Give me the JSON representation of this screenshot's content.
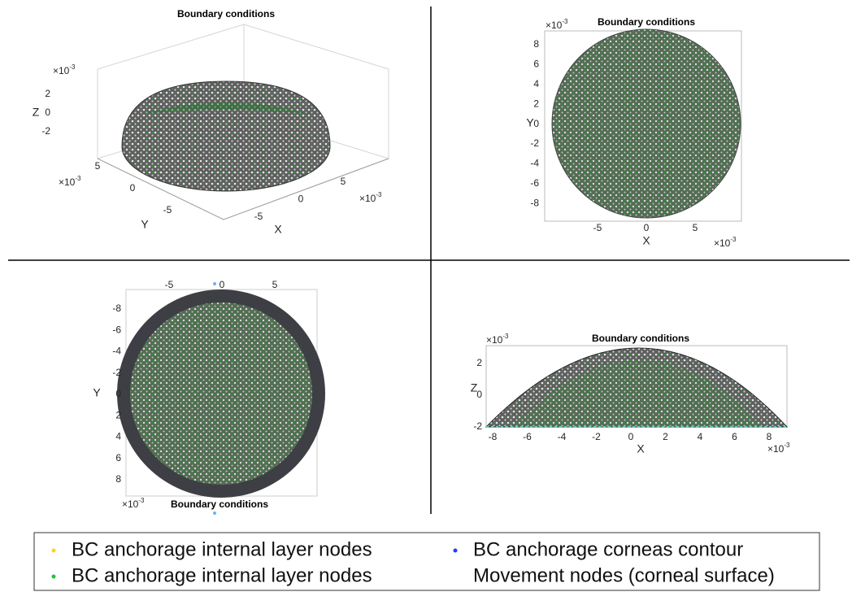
{
  "panels": [
    {
      "title": "Boundary conditions",
      "z_multiplier": {
        "base": "×10",
        "exponent": "-3"
      },
      "zticks": [
        2,
        0,
        -2
      ],
      "z_label": "Z",
      "y_multiplier": {
        "base": "×10",
        "exponent": "-3"
      },
      "yticks": [
        5,
        0,
        -5
      ],
      "y_label": "Y",
      "x_multiplier": {
        "base": "×10",
        "exponent": "-3"
      },
      "xticks": [
        -5,
        0,
        5
      ],
      "x_label": "X"
    },
    {
      "title": "Boundary conditions",
      "y_multiplier": {
        "base": "×10",
        "exponent": "-3"
      },
      "yticks": [
        8,
        6,
        4,
        2,
        0,
        -2,
        -4,
        -6,
        -8
      ],
      "y_label": "Y",
      "x_multiplier": {
        "base": "×10",
        "exponent": "-3"
      },
      "xticks": [
        -5,
        0,
        5
      ],
      "x_label": "X"
    },
    {
      "title": "Boundary conditions",
      "xticks": [
        -5,
        0,
        5
      ],
      "y_multiplier": {
        "base": "×10",
        "exponent": "-3"
      },
      "yticks": [
        -8,
        -6,
        -4,
        -2,
        0,
        2,
        4,
        6,
        8
      ],
      "y_label": "Y"
    },
    {
      "title": "Boundary conditions",
      "z_multiplier": {
        "base": "×10",
        "exponent": "-3"
      },
      "zticks": [
        2,
        0,
        -2
      ],
      "z_label": "Z",
      "x_multiplier": {
        "base": "×10",
        "exponent": "-3"
      },
      "xticks": [
        -8,
        -6,
        -4,
        -2,
        0,
        2,
        4,
        6,
        8
      ],
      "x_label": "X"
    }
  ],
  "legend": [
    {
      "label": "BC anchorage internal layer nodes",
      "color": "#ffd21f"
    },
    {
      "label": "BC anchorage corneas contour",
      "color": "#1f3cff"
    },
    {
      "label": "BC anchorage internal layer nodes",
      "color": "#19c83c"
    },
    {
      "label": "Movement nodes (corneal surface)",
      "color": "#ffffff"
    }
  ]
}
